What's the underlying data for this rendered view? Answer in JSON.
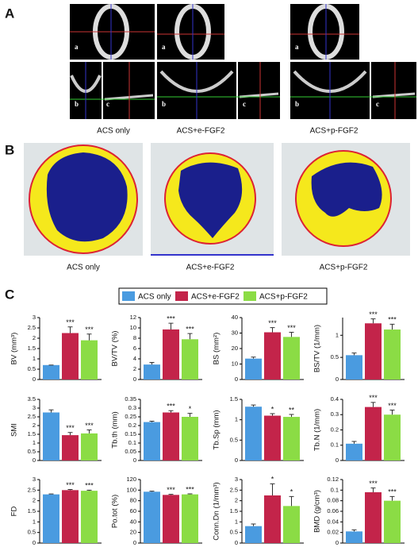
{
  "panels": [
    {
      "label": "A",
      "captions": [
        "ACS only",
        "ACS+e-FGF2",
        "ACS+p-FGF2"
      ],
      "sublabels": [
        "a",
        "b",
        "c"
      ]
    },
    {
      "label": "B",
      "captions": [
        "ACS only",
        "ACS+e-FGF2",
        "ACS+p-FGF2"
      ]
    },
    {
      "label": "C"
    }
  ],
  "legend": [
    {
      "name": "ACS only",
      "color": "#4a9be0"
    },
    {
      "name": "ACS+e-FGF2",
      "color": "#c3244a"
    },
    {
      "name": "ACS+p-FGF2",
      "color": "#8bdc45"
    }
  ],
  "chart_data": [
    {
      "type": "bar",
      "ylabel": "BV (mm³)",
      "values": [
        0.7,
        2.25,
        1.9
      ],
      "errors": [
        0,
        0.3,
        0.3
      ],
      "significance": [
        null,
        "***",
        "***"
      ],
      "ylim": [
        0,
        3
      ],
      "yticks": [
        0,
        0.5,
        1,
        1.5,
        2,
        2.5,
        3
      ]
    },
    {
      "type": "bar",
      "ylabel": "BV/TV (%)",
      "values": [
        2.9,
        9.7,
        7.8
      ],
      "errors": [
        0.4,
        1.2,
        1.1
      ],
      "significance": [
        null,
        "***",
        "***"
      ],
      "ylim": [
        0,
        12
      ],
      "yticks": [
        0,
        2,
        4,
        6,
        8,
        10,
        12
      ]
    },
    {
      "type": "bar",
      "ylabel": "BS (mm²)",
      "values": [
        13.5,
        30.5,
        27.5
      ],
      "errors": [
        1,
        3,
        3
      ],
      "significance": [
        null,
        "***",
        "***"
      ],
      "ylim": [
        0,
        40
      ],
      "yticks": [
        0,
        10,
        20,
        30,
        40
      ]
    },
    {
      "type": "bar",
      "ylabel": "BS/TV (1/mm)",
      "values": [
        0.55,
        1.27,
        1.13
      ],
      "errors": [
        0.05,
        0.1,
        0.12
      ],
      "significance": [
        null,
        "***",
        "***"
      ],
      "ylim": [
        0,
        1.4
      ],
      "yticks": [
        0,
        0.5,
        1
      ]
    },
    {
      "type": "bar",
      "ylabel": "SMI",
      "values": [
        2.75,
        1.45,
        1.55
      ],
      "errors": [
        0.15,
        0.15,
        0.2
      ],
      "significance": [
        null,
        "***",
        "***"
      ],
      "ylim": [
        0,
        3.5
      ],
      "yticks": [
        0,
        0.5,
        1,
        1.5,
        2,
        2.5,
        3,
        3.5
      ]
    },
    {
      "type": "bar",
      "ylabel": "Tb.th (mm)",
      "values": [
        0.22,
        0.275,
        0.25
      ],
      "errors": [
        0.005,
        0.01,
        0.02
      ],
      "significance": [
        null,
        "***",
        "*"
      ],
      "ylim": [
        0,
        0.35
      ],
      "yticks": [
        0,
        0.05,
        0.1,
        0.15,
        0.2,
        0.25,
        0.3,
        0.35
      ]
    },
    {
      "type": "bar",
      "ylabel": "Tb.Sp (mm)",
      "values": [
        1.32,
        1.1,
        1.07
      ],
      "errors": [
        0.04,
        0.05,
        0.06
      ],
      "significance": [
        null,
        "*",
        "**"
      ],
      "ylim": [
        0,
        1.5
      ],
      "yticks": [
        0,
        0.5,
        1,
        1.5
      ]
    },
    {
      "type": "bar",
      "ylabel": "Tb.N (1/mm)",
      "values": [
        0.11,
        0.35,
        0.3
      ],
      "errors": [
        0.015,
        0.03,
        0.03
      ],
      "significance": [
        null,
        "***",
        "***"
      ],
      "ylim": [
        0,
        0.4
      ],
      "yticks": [
        0,
        0.1,
        0.2,
        0.3,
        0.4
      ]
    },
    {
      "type": "bar",
      "ylabel": "FD",
      "values": [
        2.3,
        2.5,
        2.47
      ],
      "errors": [
        0.02,
        0.03,
        0.03
      ],
      "significance": [
        null,
        "***",
        "***"
      ],
      "ylim": [
        0,
        3
      ],
      "yticks": [
        0,
        0.5,
        1,
        1.5,
        2,
        2.5,
        3
      ]
    },
    {
      "type": "bar",
      "ylabel": "Po.tot (%)",
      "values": [
        97,
        91,
        92
      ],
      "errors": [
        1,
        1,
        1
      ],
      "significance": [
        null,
        "***",
        "***"
      ],
      "ylim": [
        0,
        120
      ],
      "yticks": [
        0,
        20,
        40,
        60,
        80,
        100,
        120
      ]
    },
    {
      "type": "bar",
      "ylabel": "Conn.Dn (1/mm³)",
      "values": [
        0.8,
        2.25,
        1.75
      ],
      "errors": [
        0.1,
        0.55,
        0.45
      ],
      "significance": [
        null,
        "*",
        "*"
      ],
      "ylim": [
        0,
        3
      ],
      "yticks": [
        0,
        0.5,
        1,
        1.5,
        2,
        2.5,
        3
      ]
    },
    {
      "type": "bar",
      "ylabel": "BMD (g/cm³)",
      "values": [
        0.022,
        0.096,
        0.08
      ],
      "errors": [
        0.003,
        0.008,
        0.008
      ],
      "significance": [
        null,
        "***",
        "***"
      ],
      "ylim": [
        0,
        0.12
      ],
      "yticks": [
        0,
        0.02,
        0.04,
        0.06,
        0.08,
        0.1,
        0.12
      ]
    }
  ]
}
